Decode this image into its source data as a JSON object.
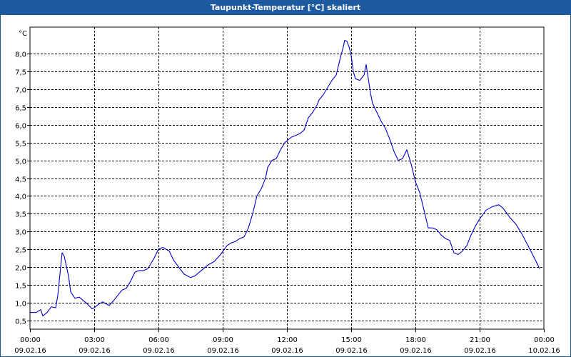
{
  "window": {
    "title": "Taupunkt-Temperatur [°C] skaliert"
  },
  "colors": {
    "titlebar": "#1e5aa0",
    "line": "#0000cc",
    "grid": "#000000"
  },
  "chart_data": {
    "type": "line",
    "title": "Taupunkt-Temperatur [°C] skaliert",
    "ylabel": "°C",
    "xlabel": "",
    "ylim": [
      0.25,
      8.75
    ],
    "xlim": [
      0,
      24
    ],
    "grid": true,
    "y_ticks": [
      "0,5",
      "1,0",
      "1,5",
      "2,0",
      "2,5",
      "3,0",
      "3,5",
      "4,0",
      "4,5",
      "5,0",
      "5,5",
      "6,0",
      "6,5",
      "7,0",
      "7,5",
      "8,0"
    ],
    "y_tick_values": [
      0.5,
      1.0,
      1.5,
      2.0,
      2.5,
      3.0,
      3.5,
      4.0,
      4.5,
      5.0,
      5.5,
      6.0,
      6.5,
      7.0,
      7.5,
      8.0
    ],
    "x_ticks": [
      {
        "time": "00:00",
        "date": "09.02.16"
      },
      {
        "time": "03:00",
        "date": "09.02.16"
      },
      {
        "time": "06:00",
        "date": "09.02.16"
      },
      {
        "time": "09:00",
        "date": "09.02.16"
      },
      {
        "time": "12:00",
        "date": "09.02.16"
      },
      {
        "time": "15:00",
        "date": "09.02.16"
      },
      {
        "time": "18:00",
        "date": "09.02.16"
      },
      {
        "time": "21:00",
        "date": "09.02.16"
      },
      {
        "time": "00:00",
        "date": "10.02.16"
      }
    ],
    "x_tick_values": [
      0,
      3,
      6,
      9,
      12,
      15,
      18,
      21,
      24
    ],
    "series": [
      {
        "x": [
          0.0,
          0.3,
          0.5,
          0.6,
          0.8,
          1.0,
          1.2,
          1.3,
          1.5,
          1.6,
          1.8,
          1.9,
          2.1,
          2.3,
          2.5,
          2.7,
          2.9,
          3.0,
          3.2,
          3.4,
          3.5,
          3.7,
          3.9,
          4.1,
          4.3,
          4.5,
          4.7,
          4.9,
          5.1,
          5.3,
          5.5,
          5.8,
          6.0,
          6.2,
          6.5,
          6.7,
          7.0,
          7.2,
          7.5,
          7.7,
          8.0,
          8.3,
          8.6,
          8.9,
          9.2,
          9.4,
          9.6,
          9.8,
          10.0,
          10.2,
          10.4,
          10.6,
          10.8,
          11.0,
          11.1,
          11.3,
          11.5,
          11.7,
          11.9,
          12.0,
          12.2,
          12.4,
          12.6,
          12.8,
          13.0,
          13.2,
          13.4,
          13.5,
          13.7,
          13.9,
          14.1,
          14.3,
          14.5,
          14.6,
          14.7,
          14.8,
          14.9,
          15.0,
          15.1,
          15.2,
          15.4,
          15.6,
          15.7,
          15.8,
          15.9,
          16.0,
          16.2,
          16.4,
          16.6,
          16.8,
          17.0,
          17.2,
          17.4,
          17.6,
          17.8,
          18.0,
          18.2,
          18.4,
          18.6,
          18.8,
          19.0,
          19.2,
          19.4,
          19.6,
          19.8,
          20.0,
          20.2,
          20.4,
          20.6,
          20.8,
          21.0,
          21.3,
          21.6,
          21.9,
          22.1,
          22.4,
          22.7,
          23.0,
          23.3,
          23.6,
          23.8
        ],
        "y": [
          0.72,
          0.72,
          0.8,
          0.62,
          0.72,
          0.88,
          0.85,
          1.2,
          2.4,
          2.3,
          1.75,
          1.3,
          1.12,
          1.15,
          1.05,
          0.95,
          0.82,
          0.85,
          0.95,
          1.02,
          0.98,
          0.92,
          1.05,
          1.2,
          1.35,
          1.4,
          1.6,
          1.85,
          1.9,
          1.9,
          1.95,
          2.25,
          2.5,
          2.55,
          2.45,
          2.2,
          1.95,
          1.8,
          1.7,
          1.75,
          1.9,
          2.05,
          2.15,
          2.35,
          2.6,
          2.68,
          2.72,
          2.8,
          2.85,
          3.1,
          3.5,
          4.0,
          4.2,
          4.5,
          4.8,
          5.0,
          5.05,
          5.3,
          5.5,
          5.55,
          5.65,
          5.7,
          5.75,
          5.85,
          6.2,
          6.35,
          6.55,
          6.7,
          6.85,
          7.05,
          7.25,
          7.4,
          7.9,
          8.12,
          8.38,
          8.35,
          8.2,
          7.95,
          7.5,
          7.3,
          7.25,
          7.4,
          7.7,
          7.3,
          6.9,
          6.6,
          6.35,
          6.1,
          5.9,
          5.6,
          5.25,
          5.0,
          5.05,
          5.3,
          4.9,
          4.4,
          4.1,
          3.6,
          3.1,
          3.1,
          3.05,
          2.9,
          2.8,
          2.75,
          2.4,
          2.35,
          2.45,
          2.6,
          2.9,
          3.15,
          3.35,
          3.6,
          3.7,
          3.75,
          3.65,
          3.4,
          3.2,
          2.9,
          2.55,
          2.2,
          1.95
        ]
      }
    ]
  }
}
